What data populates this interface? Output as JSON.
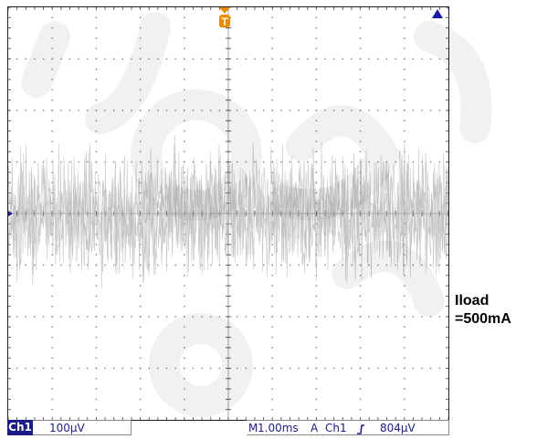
{
  "scope": {
    "divisions": {
      "horizontal": 10,
      "vertical": 8
    },
    "noise_band_divisions": [
      -1.6,
      1.6
    ],
    "trace_color": "#b4b4b4",
    "marker_color": "#f08a00",
    "ground_marker_color": "#1a1aaa"
  },
  "trigger_marker": {
    "label": "T",
    "color": "#f08a00"
  },
  "status_bar": {
    "channel_badge": "Ch1",
    "channel_scale": "100μV",
    "timebase_prefix": "M",
    "timebase": "1.00ms",
    "trigger_mode": "A",
    "trigger_channel": "Ch1",
    "trigger_slope_icon": "rising-edge-icon",
    "trigger_level": "804μV",
    "text_color": "#1a1a9a",
    "badge_color": "#1b1b8c"
  },
  "annotation": {
    "line1": "Iload",
    "line2": "=500mA"
  }
}
